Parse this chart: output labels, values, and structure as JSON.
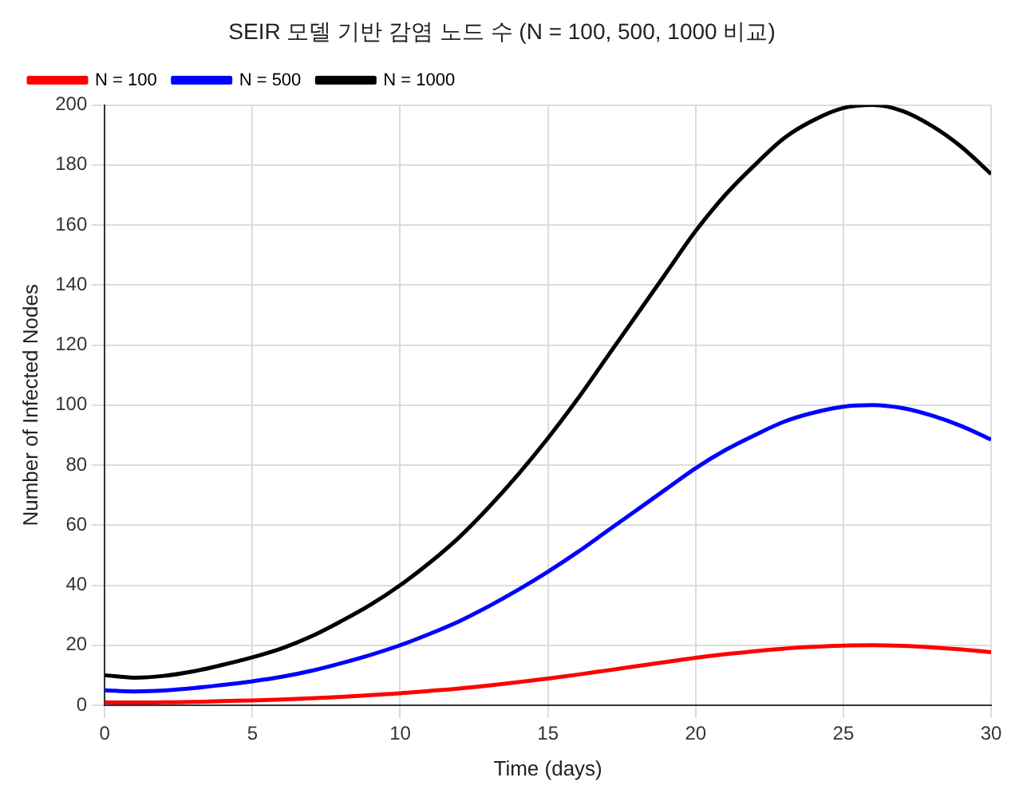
{
  "chart_data": {
    "type": "line",
    "title": "SEIR 모델 기반 감염 노드 수 (N = 100, 500, 1000 비교)",
    "xlabel": "Time (days)",
    "ylabel": "Number of Infected Nodes",
    "x": [
      0,
      1,
      2,
      3,
      4,
      5,
      6,
      7,
      8,
      9,
      10,
      11,
      12,
      13,
      14,
      15,
      16,
      17,
      18,
      19,
      20,
      21,
      22,
      23,
      24,
      25,
      26,
      27,
      28,
      29,
      30
    ],
    "series": [
      {
        "name": "N = 100",
        "color": "#ff0000",
        "values": [
          1,
          0.9,
          1,
          1.1,
          1.4,
          1.6,
          1.9,
          2.3,
          2.8,
          3.4,
          4,
          4.8,
          5.6,
          6.6,
          7.7,
          8.9,
          10.2,
          11.6,
          13,
          14.4,
          15.8,
          17,
          18,
          18.9,
          19.5,
          19.9,
          20,
          19.8,
          19.3,
          18.6,
          17.7
        ]
      },
      {
        "name": "N = 500",
        "color": "#0000ff",
        "values": [
          5,
          4.6,
          4.9,
          5.7,
          6.8,
          8,
          9.5,
          11.5,
          14,
          16.8,
          20,
          23.8,
          28,
          33,
          38.5,
          44.5,
          51,
          58,
          65,
          72,
          79,
          85,
          90,
          94.5,
          97.5,
          99.5,
          100,
          99,
          96.5,
          93,
          88.5
        ]
      },
      {
        "name": "N = 1000",
        "color": "#000000",
        "values": [
          10,
          9.2,
          9.8,
          11.3,
          13.5,
          16,
          19,
          23,
          28,
          33.5,
          40,
          47.5,
          56,
          66,
          77,
          89,
          102,
          116,
          130,
          144,
          158,
          170,
          180,
          189,
          195,
          199,
          200,
          198,
          193,
          186,
          177
        ]
      }
    ],
    "xlim": [
      0,
      30
    ],
    "xticks": [
      0,
      5,
      10,
      15,
      20,
      25,
      30
    ],
    "ylim": [
      0,
      200
    ],
    "yticks": [
      0,
      20,
      40,
      60,
      80,
      100,
      120,
      140,
      160,
      180,
      200
    ],
    "grid": true,
    "legend": "top left",
    "marker": "none",
    "line_style": "solid"
  }
}
